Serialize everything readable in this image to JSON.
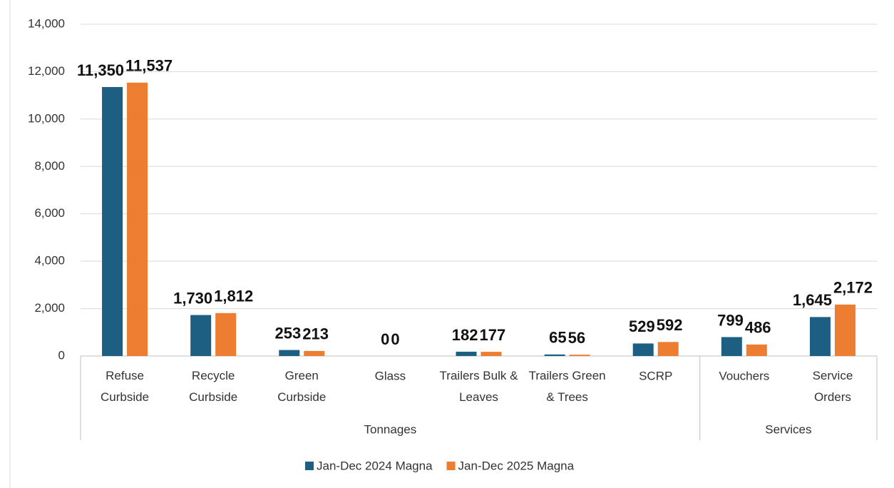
{
  "chart_data": {
    "type": "bar",
    "categories": [
      "Refuse\nCurbside",
      "Recycle\nCurbside",
      "Green\nCurbside",
      "Glass",
      "Trailers Bulk &\nLeaves",
      "Trailers Green\n& Trees",
      "SCRP",
      "Vouchers",
      "Service\nOrders"
    ],
    "category_groups": [
      "Tonnages",
      "Tonnages",
      "Tonnages",
      "Tonnages",
      "Tonnages",
      "Tonnages",
      "Tonnages",
      "Services",
      "Services"
    ],
    "series": [
      {
        "name": "Jan-Dec 2024 Magna",
        "color": "#1d5f82",
        "values": [
          11350,
          1730,
          253,
          0,
          182,
          65,
          529,
          799,
          1645
        ],
        "value_labels": [
          "11,350",
          "1,730",
          "253",
          "0",
          "182",
          "65",
          "529",
          "799",
          "1,645"
        ]
      },
      {
        "name": "Jan-Dec 2025 Magna",
        "color": "#ed7d31",
        "values": [
          11537,
          1812,
          213,
          0,
          177,
          56,
          592,
          486,
          2172
        ],
        "value_labels": [
          "11,537",
          "1,812",
          "213",
          "0",
          "177",
          "56",
          "592",
          "486",
          "2,172"
        ]
      }
    ],
    "ylim": [
      0,
      14000
    ],
    "yticks": [
      0,
      {
        "value": 2000,
        "label": "2,000"
      },
      {
        "value": 4000,
        "label": "4,000"
      },
      {
        "value": 6000,
        "label": "6,000"
      },
      {
        "value": 8000,
        "label": "8,000"
      },
      {
        "value": 10000,
        "label": "10,000"
      },
      {
        "value": 12000,
        "label": "12,000"
      },
      {
        "value": 14000,
        "label": "14,000"
      }
    ],
    "grid": true,
    "legend": "bottom"
  }
}
